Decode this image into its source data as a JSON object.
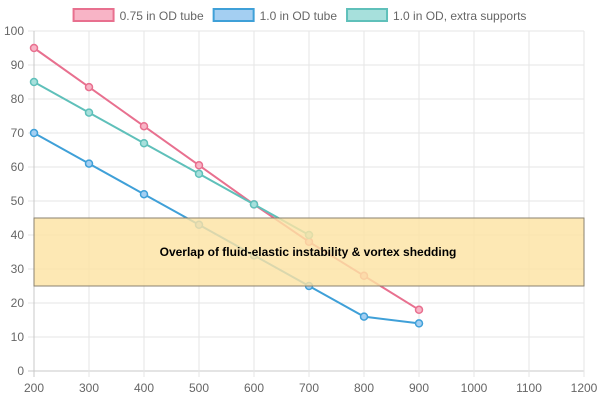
{
  "chart_data": {
    "type": "line",
    "x": [
      200,
      300,
      400,
      500,
      600,
      700,
      800,
      900
    ],
    "xlim": [
      200,
      1200
    ],
    "ylim": [
      0,
      100
    ],
    "x_ticks": [
      200,
      300,
      400,
      500,
      600,
      700,
      800,
      900,
      1000,
      1100,
      1200
    ],
    "y_ticks": [
      0,
      10,
      20,
      30,
      40,
      50,
      60,
      70,
      80,
      90,
      100
    ],
    "grid": true,
    "legend_position": "top",
    "series": [
      {
        "name": "0.75 in OD tube",
        "color": "#e8708f",
        "fill": "#f8b4c6",
        "values": [
          95,
          83.5,
          72,
          60.5,
          49,
          38,
          28,
          18
        ]
      },
      {
        "name": "1.0 in OD tube",
        "color": "#3fa0d8",
        "fill": "#a4cff2",
        "values": [
          70,
          61,
          52,
          43,
          34,
          25,
          16,
          14
        ]
      },
      {
        "name": "1.0 in OD, extra supports",
        "color": "#5fc0ba",
        "fill": "#a7e0dc",
        "values": [
          85,
          76,
          67,
          58,
          49,
          40,
          null,
          null
        ]
      }
    ],
    "annotations": [
      {
        "type": "band",
        "y_range": [
          25,
          45
        ],
        "label": "Overlap of fluid-elastic instability & vortex shedding",
        "fill": "#fde3a3",
        "border": "#8a8270"
      }
    ]
  }
}
